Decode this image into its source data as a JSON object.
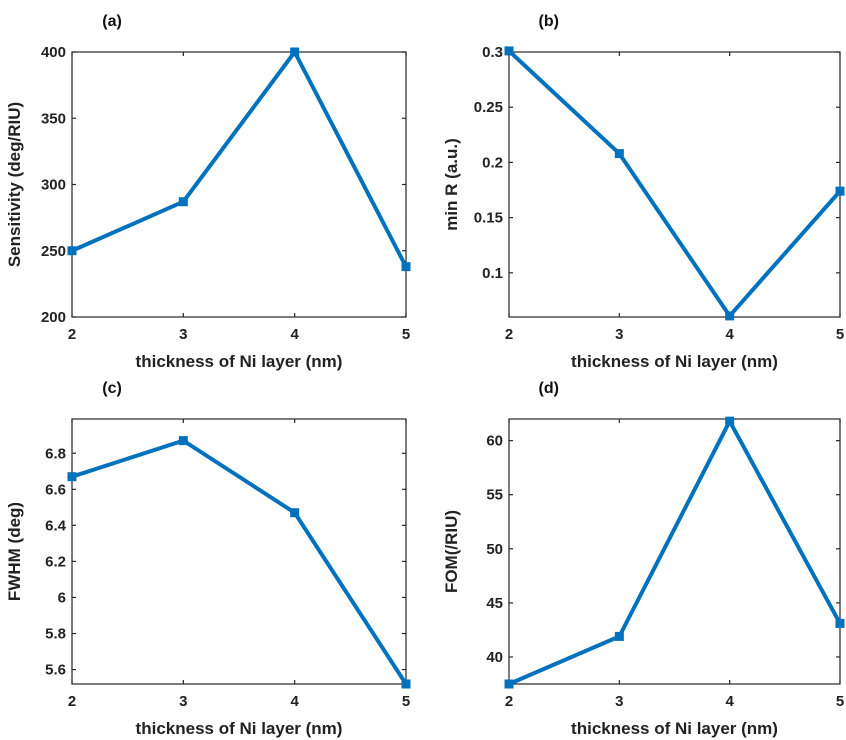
{
  "style": {
    "series_color": "#0072BD"
  },
  "chart_data": [
    {
      "type": "line",
      "panel_label": "(a)",
      "xlabel": "thickness of Ni layer (nm)",
      "ylabel": "Sensitivity (deg/RIU)",
      "x": [
        2,
        3,
        4,
        5
      ],
      "xlim": [
        2,
        5
      ],
      "xticks": [
        2,
        3,
        4,
        5
      ],
      "ylim": [
        200,
        400
      ],
      "yticks": [
        200,
        250,
        300,
        350,
        400
      ],
      "ytick_labels": [
        "200",
        "250",
        "300",
        "350",
        "400"
      ],
      "series": [
        {
          "values": [
            250,
            287,
            400,
            238
          ]
        }
      ],
      "marker": "square",
      "grid": false,
      "legend": false
    },
    {
      "type": "line",
      "panel_label": "(b)",
      "xlabel": "thickness of Ni layer (nm)",
      "ylabel": "min R (a.u.)",
      "x": [
        2,
        3,
        4,
        5
      ],
      "xlim": [
        2,
        5
      ],
      "xticks": [
        2,
        3,
        4,
        5
      ],
      "ylim": [
        0.06,
        0.3
      ],
      "yticks": [
        0.1,
        0.15,
        0.2,
        0.25,
        0.3
      ],
      "ytick_labels": [
        "0.1",
        "0.15",
        "0.2",
        "0.25",
        "0.3"
      ],
      "series": [
        {
          "values": [
            0.301,
            0.208,
            0.061,
            0.174
          ]
        }
      ],
      "marker": "square",
      "grid": false,
      "legend": false
    },
    {
      "type": "line",
      "panel_label": "(c)",
      "xlabel": "thickness of Ni layer (nm)",
      "ylabel": "FWHM (deg)",
      "x": [
        2,
        3,
        4,
        5
      ],
      "xlim": [
        2,
        5
      ],
      "xticks": [
        2,
        3,
        4,
        5
      ],
      "ylim": [
        5.52,
        6.99
      ],
      "yticks": [
        5.6,
        5.8,
        6,
        6.2,
        6.4,
        6.6,
        6.8
      ],
      "ytick_labels": [
        "5.6",
        "5.8",
        "6",
        "6.2",
        "6.4",
        "6.6",
        "6.8"
      ],
      "series": [
        {
          "values": [
            6.67,
            6.87,
            6.47,
            5.52
          ]
        }
      ],
      "marker": "square",
      "grid": false,
      "legend": false
    },
    {
      "type": "line",
      "panel_label": "(d)",
      "xlabel": "thickness of Ni layer (nm)",
      "ylabel": "FOM(/RIU)",
      "x": [
        2,
        3,
        4,
        5
      ],
      "xlim": [
        2,
        5
      ],
      "xticks": [
        2,
        3,
        4,
        5
      ],
      "ylim": [
        37.5,
        62
      ],
      "yticks": [
        40,
        45,
        50,
        55,
        60
      ],
      "ytick_labels": [
        "40",
        "45",
        "50",
        "55",
        "60"
      ],
      "series": [
        {
          "values": [
            37.5,
            41.9,
            61.8,
            43.1
          ]
        }
      ],
      "marker": "square",
      "grid": false,
      "legend": false
    }
  ]
}
